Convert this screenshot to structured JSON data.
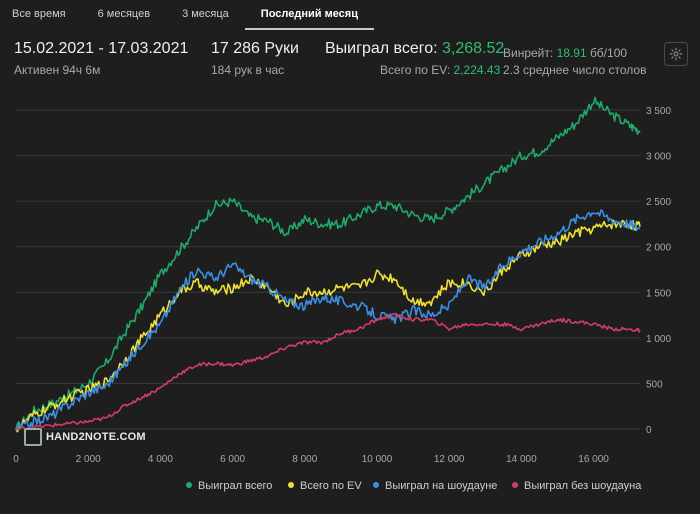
{
  "tabs": [
    "Все время",
    "6 месяцев",
    "3 месяца",
    "Последний месяц"
  ],
  "header": {
    "date_range": "15.02.2021 - 17.03.2021",
    "active_time": "Активен 94ч 6м",
    "hands": "17 286 Руки",
    "hands_per_hour": "184 рук в час",
    "won_total_label": "Выиграл всего:",
    "won_total_value": "3,268.52",
    "ev_label": "Всего по EV:",
    "ev_value": "2,224.43",
    "winrate_label": "Винрейт:",
    "winrate_value": "18.91",
    "winrate_unit": "бб/100",
    "avg_tables": "2.3 среднее число столов"
  },
  "watermark": "HAND2NOTE.COM",
  "legend": [
    {
      "label": "Выиграл всего",
      "color": "#20a968"
    },
    {
      "label": "Всего по EV",
      "color": "#ece038"
    },
    {
      "label": "Выиграл на шоудауне",
      "color": "#3d8ee0"
    },
    {
      "label": "Выиграл без шоудауна",
      "color": "#d23c6c"
    }
  ],
  "chart_data": {
    "type": "line",
    "xlim": [
      0,
      17286
    ],
    "ylim": [
      0,
      3500
    ],
    "x_ticks": [
      "0",
      "2 000",
      "4 000",
      "6 000",
      "8 000",
      "10 000",
      "12 000",
      "14 000",
      "16 000"
    ],
    "y_ticks": [
      "0",
      "500",
      "1 000",
      "1 500",
      "2 000",
      "2 500",
      "3 000",
      "3 500"
    ],
    "x": [
      0,
      500,
      1000,
      1500,
      2000,
      2500,
      3000,
      3500,
      4000,
      4500,
      5000,
      5500,
      6000,
      6500,
      7000,
      7500,
      8000,
      8500,
      9000,
      9500,
      10000,
      10500,
      11000,
      11500,
      12000,
      12500,
      13000,
      13500,
      14000,
      14500,
      15000,
      15500,
      16000,
      16500,
      17000,
      17286
    ],
    "series": [
      {
        "name": "Выиграл всего",
        "color": "#20a968",
        "values": [
          0,
          200,
          280,
          380,
          500,
          720,
          1050,
          1350,
          1700,
          1950,
          2200,
          2450,
          2500,
          2320,
          2280,
          2150,
          2300,
          2250,
          2250,
          2350,
          2450,
          2450,
          2350,
          2300,
          2400,
          2550,
          2700,
          2850,
          3000,
          3050,
          3200,
          3350,
          3600,
          3450,
          3330,
          3270
        ]
      },
      {
        "name": "Всего по EV",
        "color": "#ece038",
        "values": [
          0,
          150,
          250,
          350,
          430,
          520,
          750,
          1000,
          1250,
          1500,
          1600,
          1500,
          1550,
          1650,
          1550,
          1350,
          1500,
          1500,
          1550,
          1550,
          1700,
          1650,
          1400,
          1400,
          1600,
          1600,
          1500,
          1750,
          1900,
          2000,
          2050,
          2150,
          2200,
          2250,
          2250,
          2220
        ]
      },
      {
        "name": "Выиграл на шоудауне",
        "color": "#3d8ee0",
        "values": [
          0,
          80,
          150,
          280,
          400,
          480,
          700,
          950,
          1150,
          1500,
          1750,
          1650,
          1800,
          1650,
          1550,
          1400,
          1350,
          1450,
          1400,
          1350,
          1250,
          1200,
          1300,
          1250,
          1350,
          1650,
          1550,
          1800,
          1950,
          2050,
          2150,
          2300,
          2400,
          2300,
          2250,
          2200
        ]
      },
      {
        "name": "Выиграл без шоудауна",
        "color": "#d23c6c",
        "values": [
          0,
          20,
          40,
          60,
          80,
          120,
          250,
          350,
          450,
          600,
          700,
          720,
          700,
          750,
          800,
          900,
          950,
          950,
          1050,
          1100,
          1200,
          1250,
          1200,
          1200,
          1100,
          1150,
          1150,
          1150,
          1100,
          1150,
          1200,
          1180,
          1150,
          1100,
          1090,
          1080
        ]
      }
    ]
  }
}
